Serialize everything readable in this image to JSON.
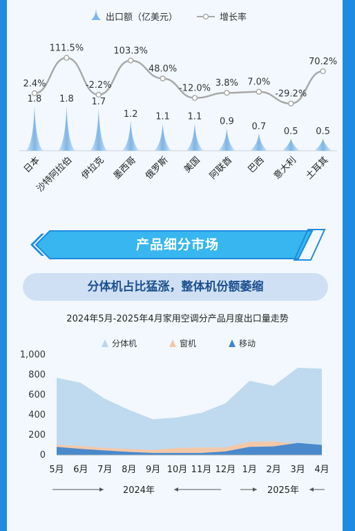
{
  "colors": {
    "frame": "#1e8be0",
    "panel": "#f2f8fe",
    "export_fill": "#7fb5e6",
    "growth_line": "#a8a8a8",
    "banner": "#37b6ef",
    "split_unit": "#b9d6ec",
    "window_unit": "#f6c7a4",
    "portable": "#3f86cd"
  },
  "chart_data": [
    {
      "type": "bar",
      "legend": [
        "出口额（亿美元）",
        "增长率"
      ],
      "categories": [
        "日本",
        "沙特阿拉伯",
        "伊拉克",
        "墨西哥",
        "俄罗斯",
        "美国",
        "阿联酋",
        "巴西",
        "意大利",
        "土耳其"
      ],
      "series": [
        {
          "name": "出口额（亿美元）",
          "values": [
            1.8,
            1.8,
            1.7,
            1.2,
            1.1,
            1.1,
            0.9,
            0.7,
            0.5,
            0.5
          ],
          "labels": [
            "1.8",
            "1.8",
            "1.7",
            "1.2",
            "1.1",
            "1.1",
            "0.9",
            "0.7",
            "0.5",
            "0.5"
          ]
        },
        {
          "name": "增长率",
          "type": "line",
          "values": [
            2.4,
            111.5,
            -2.2,
            103.3,
            48.0,
            -12.0,
            3.8,
            7.0,
            -29.2,
            70.2
          ],
          "labels": [
            "2.4%",
            "111.5%",
            "-2.2%",
            "103.3%",
            "48.0%",
            "-12.0%",
            "3.8%",
            "7.0%",
            "-29.2%",
            "70.2%"
          ]
        }
      ]
    },
    {
      "type": "area",
      "title": "2024年5月-2025年4月家用空调分产品月度出口量走势",
      "categories": [
        "5月",
        "6月",
        "7月",
        "8月",
        "9月",
        "10月",
        "11月",
        "12月",
        "1月",
        "2月",
        "3月",
        "4月"
      ],
      "series": [
        {
          "name": "分体机",
          "values": [
            770,
            720,
            560,
            450,
            355,
            375,
            420,
            515,
            740,
            690,
            870,
            860
          ]
        },
        {
          "name": "窗机",
          "values": [
            100,
            90,
            70,
            60,
            50,
            70,
            75,
            75,
            130,
            135,
            110,
            100
          ]
        },
        {
          "name": "移动",
          "values": [
            80,
            60,
            45,
            30,
            20,
            20,
            20,
            35,
            80,
            85,
            120,
            100
          ]
        }
      ],
      "y_ticks": [
        "0",
        "200",
        "400",
        "600",
        "800",
        "1,000"
      ],
      "ylim": [
        0,
        1000
      ],
      "year_labels": [
        "2024年",
        "2025年"
      ]
    }
  ],
  "section": {
    "banner": "产品细分市场",
    "subtitle": "分体机占比猛涨，整体机份额萎缩"
  }
}
